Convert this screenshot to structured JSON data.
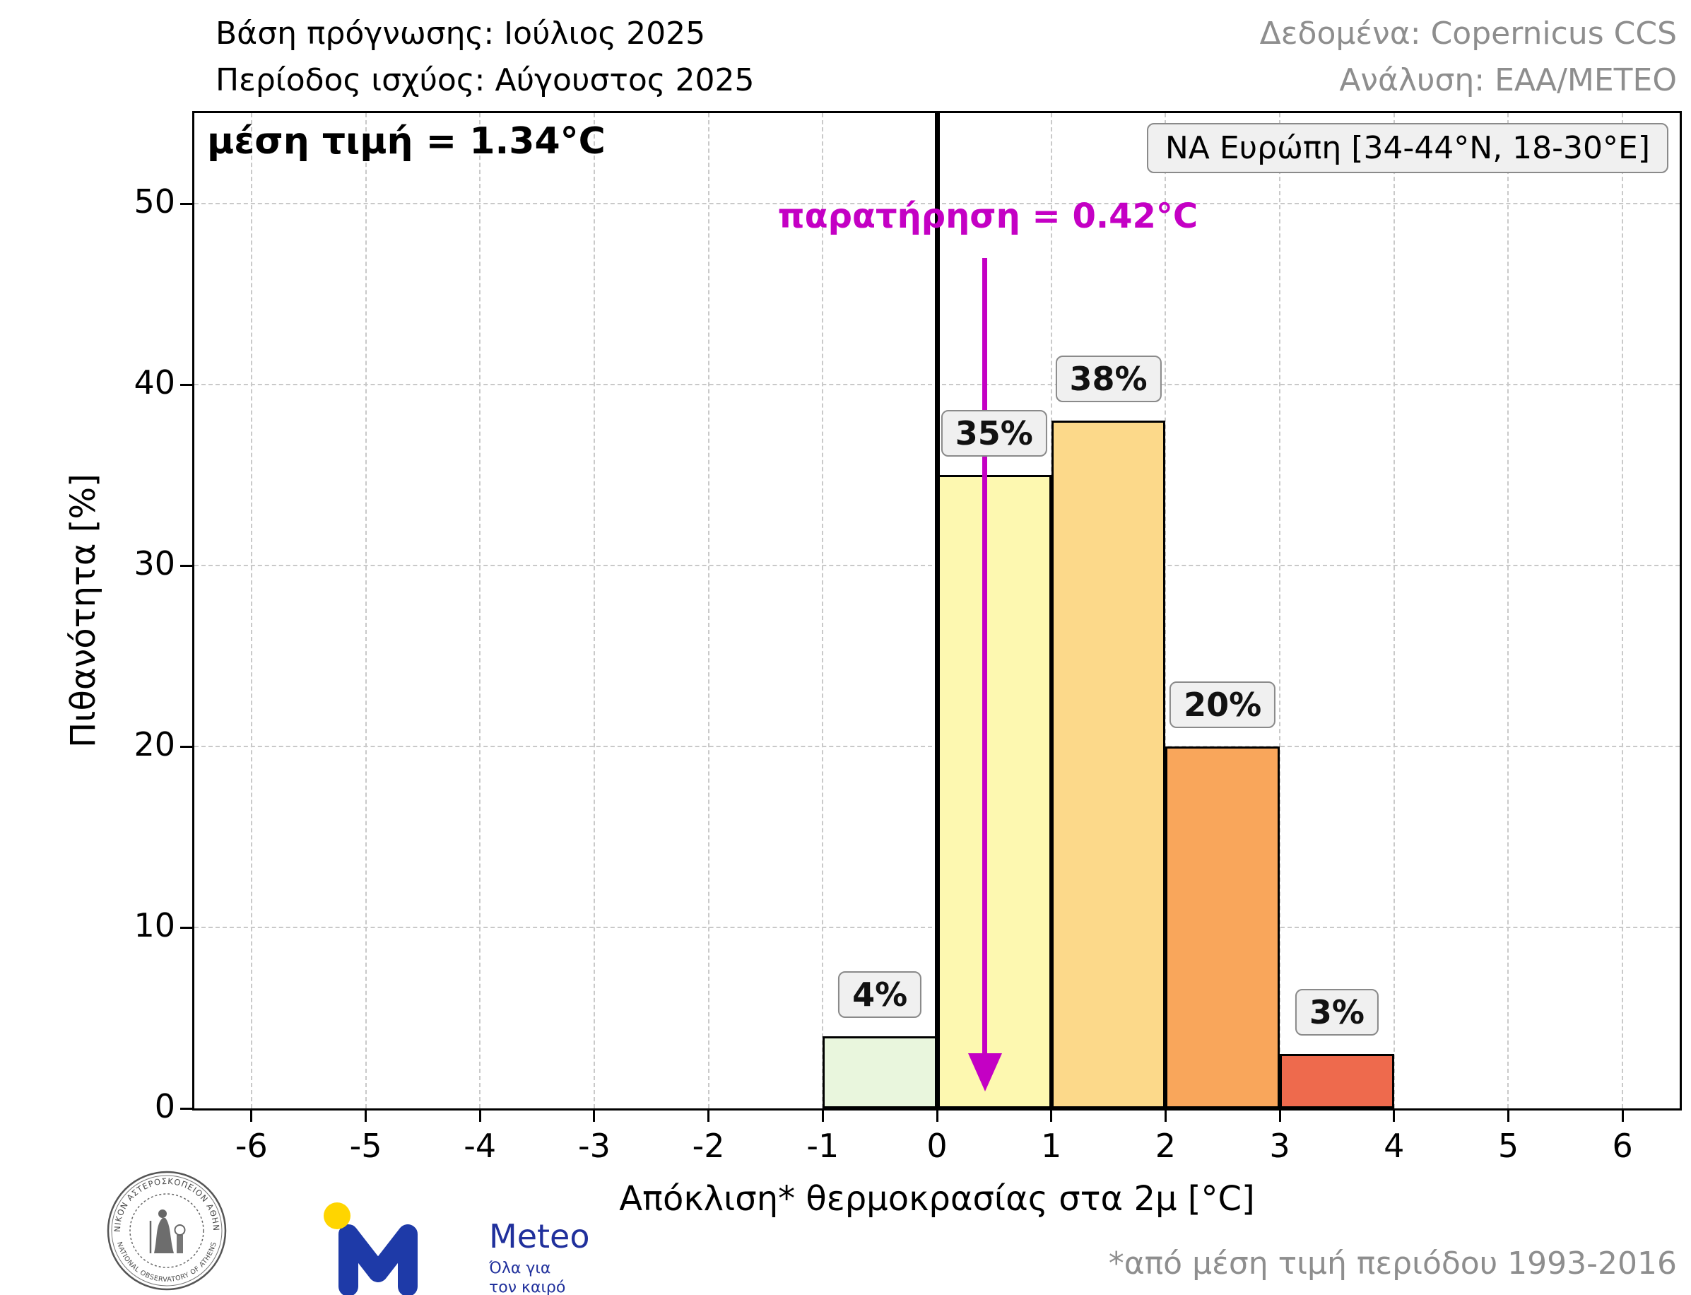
{
  "header": {
    "left_line1": "Βάση πρόγνωσης: Ιούλιος 2025",
    "left_line2": "Περίοδος ισχύος: Αύγουστος 2025",
    "right_line1": "Δεδομένα: Copernicus CCS",
    "right_line2": "Ανάλυση: ΕΑΑ/ΜΕΤΕΟ"
  },
  "chart_data": {
    "type": "bar",
    "title": "μέση τιμή = 1.34°C",
    "region_label": "ΝΑ Ευρώπη [34-44°N, 18-30°E]",
    "xlabel": "Απόκλιση* θερμοκρασίας στα 2μ [°C]",
    "ylabel": "Πιθανότητα [%]",
    "xlim": [
      -6.5,
      6.5
    ],
    "ylim": [
      0,
      55
    ],
    "xticks": [
      -6,
      -5,
      -4,
      -3,
      -2,
      -1,
      0,
      1,
      2,
      3,
      4,
      5,
      6
    ],
    "yticks": [
      0,
      10,
      20,
      30,
      40,
      50
    ],
    "grid": "dashed",
    "zero_line_x": 0,
    "observation": {
      "label": "παρατήρηση = 0.42°C",
      "x": 0.42,
      "color": "#c400c4"
    },
    "bins": [
      {
        "x0": -1,
        "x1": 0,
        "value": 4,
        "label": "4%",
        "color": "#e9f6dd"
      },
      {
        "x0": 0,
        "x1": 1,
        "value": 35,
        "label": "35%",
        "color": "#fdf8b0"
      },
      {
        "x0": 1,
        "x1": 2,
        "value": 38,
        "label": "38%",
        "color": "#fcd98a"
      },
      {
        "x0": 2,
        "x1": 3,
        "value": 20,
        "label": "20%",
        "color": "#f9a65b"
      },
      {
        "x0": 3,
        "x1": 4,
        "value": 3,
        "label": "3%",
        "color": "#ee6a4d"
      }
    ]
  },
  "footer": {
    "footnote": "*από μέση τιμή περιόδου 1993-2016",
    "meteo_logo": {
      "name": "Meteo",
      "tagline": "Όλα για τον καιρό"
    },
    "observatory_seal": {
      "text_top": "ΕΘΝΙΚΟΝ ΑΣΤΕΡΟΣΚΟΠΕΙΟΝ ΑΘΗΝΩΝ",
      "text_bottom": "NATIONAL OBSERVATORY OF ATHENS"
    }
  }
}
